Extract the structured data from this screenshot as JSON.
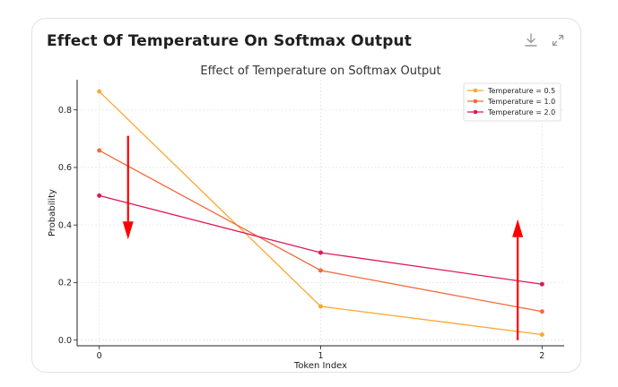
{
  "card": {
    "title": "Effect Of Temperature On Softmax Output"
  },
  "toolbar": {
    "download_icon": "download-icon",
    "expand_icon": "expand-icon"
  },
  "chart_data": {
    "type": "line",
    "title": "Effect of Temperature on Softmax Output",
    "xlabel": "Token Index",
    "ylabel": "Probability",
    "x": [
      0,
      1,
      2
    ],
    "x_tick_labels": [
      "0",
      "1",
      "2"
    ],
    "y_ticks": [
      0.0,
      0.2,
      0.4,
      0.6,
      0.8
    ],
    "y_tick_labels": [
      "0.0",
      "0.2",
      "0.4",
      "0.6",
      "0.8"
    ],
    "xlim": [
      -0.1,
      2.1
    ],
    "ylim": [
      -0.02,
      0.905
    ],
    "grid": true,
    "legend_position": "top-right",
    "series": [
      {
        "name": "Temperature = 0.5",
        "color": "#f9a833",
        "values": [
          0.864,
          0.117,
          0.019
        ]
      },
      {
        "name": "Temperature = 1.0",
        "color": "#f26a3d",
        "values": [
          0.659,
          0.242,
          0.099
        ]
      },
      {
        "name": "Temperature = 2.0",
        "color": "#e0185b",
        "values": [
          0.502,
          0.304,
          0.194
        ]
      }
    ],
    "annotations": [
      {
        "type": "arrow",
        "direction": "down",
        "x": 0.13,
        "y_from": 0.71,
        "y_to": 0.35,
        "color": "#ff0000"
      },
      {
        "type": "arrow",
        "direction": "up",
        "x": 1.89,
        "y_from": 0.0,
        "y_to": 0.42,
        "color": "#ff0000"
      }
    ]
  }
}
